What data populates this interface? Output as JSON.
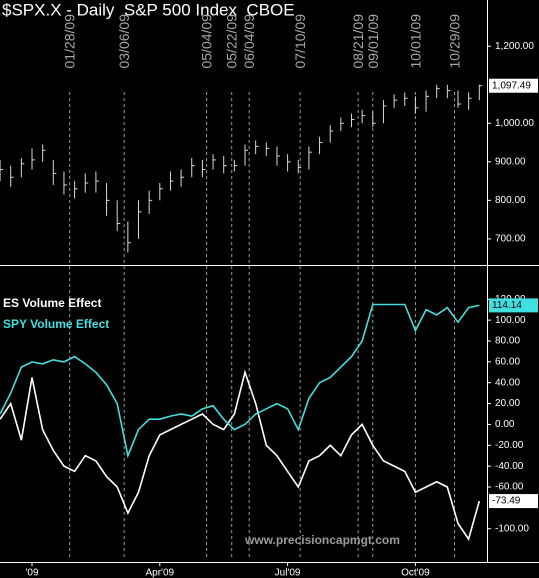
{
  "watermark": "www.precisioncapmgt.com",
  "chart_data": [
    {
      "type": "ohlc",
      "title": "$SPX.X - Daily  S&P 500 Index  CBOE",
      "color": "#d8d8d8",
      "high": [
        905,
        890,
        910,
        935,
        945,
        905,
        875,
        850,
        870,
        875,
        845,
        800,
        745,
        800,
        825,
        845,
        875,
        880,
        910,
        905,
        920,
        915,
        905,
        945,
        955,
        950,
        940,
        920,
        905,
        940,
        965,
        995,
        1015,
        1025,
        1035,
        1030,
        1060,
        1075,
        1080,
        1070,
        1085,
        1100,
        1100,
        1085,
        1080,
        1100
      ],
      "low": [
        850,
        835,
        860,
        880,
        900,
        840,
        815,
        805,
        820,
        820,
        760,
        720,
        665,
        700,
        765,
        800,
        825,
        835,
        860,
        860,
        880,
        870,
        875,
        890,
        920,
        915,
        890,
        875,
        870,
        880,
        920,
        950,
        980,
        990,
        1000,
        990,
        1000,
        1040,
        1045,
        1025,
        1030,
        1065,
        1065,
        1040,
        1035,
        1060
      ],
      "values": [
        880,
        860,
        895,
        905,
        930,
        870,
        840,
        830,
        845,
        850,
        800,
        740,
        690,
        770,
        800,
        830,
        850,
        860,
        890,
        880,
        905,
        890,
        890,
        930,
        940,
        935,
        915,
        900,
        885,
        925,
        950,
        980,
        1000,
        1010,
        1020,
        1000,
        1045,
        1060,
        1065,
        1040,
        1070,
        1090,
        1085,
        1050,
        1065,
        1097.49
      ],
      "value_labels": [
        null,
        null,
        null,
        null,
        null,
        null,
        null,
        null,
        null,
        null,
        null,
        null,
        null,
        null,
        null,
        null,
        null,
        null,
        null,
        null,
        null,
        null,
        null,
        null,
        null,
        null,
        null,
        null,
        null,
        null,
        null,
        null,
        null,
        null,
        null,
        null,
        null,
        null,
        null,
        null,
        null,
        null,
        null,
        null,
        null,
        "1,097.49"
      ],
      "ylim": [
        640,
        1320
      ],
      "yticks": [
        {
          "value": 700,
          "label": "700.00"
        },
        {
          "value": 800,
          "label": "800.00"
        },
        {
          "value": 900,
          "label": "900.00"
        },
        {
          "value": 1000,
          "label": "1,000.00"
        },
        {
          "value": 1200,
          "label": "1,200.00"
        }
      ],
      "annotations": [
        "01/28/09",
        "03/06/09",
        "05/04/09",
        "05/22/09",
        "06/04/09",
        "07/10/09",
        "08/21/09",
        "09/01/09",
        "10/01/09",
        "10/29/09"
      ]
    },
    {
      "type": "line",
      "categories": [
        null,
        null,
        null,
        "'09",
        null,
        null,
        null,
        null,
        null,
        null,
        null,
        null,
        null,
        null,
        null,
        "Apr'09",
        null,
        null,
        null,
        null,
        null,
        null,
        null,
        null,
        null,
        null,
        null,
        "Jul'09",
        null,
        null,
        null,
        null,
        null,
        null,
        null,
        null,
        null,
        null,
        null,
        "Oct'09",
        null,
        null,
        null,
        null,
        null,
        null
      ],
      "series": [
        {
          "name": "ES Volume Effect",
          "color": "#ffffff",
          "values": [
            5,
            20,
            -15,
            45,
            -5,
            -25,
            -40,
            -45,
            -30,
            -35,
            -50,
            -60,
            -85,
            -65,
            -30,
            -10,
            -5,
            0,
            5,
            10,
            0,
            -5,
            10,
            50,
            20,
            -20,
            -30,
            -45,
            -60,
            -35,
            -30,
            -20,
            -30,
            -10,
            0,
            -20,
            -35,
            -40,
            -45,
            -65,
            -60,
            -55,
            -60,
            -95,
            -110,
            -73.49
          ]
        },
        {
          "name": "SPY Volume Effect",
          "color": "#40e0e0",
          "values": [
            10,
            30,
            55,
            60,
            58,
            62,
            60,
            65,
            58,
            50,
            38,
            20,
            -30,
            -5,
            5,
            5,
            8,
            10,
            8,
            15,
            18,
            5,
            -5,
            0,
            10,
            15,
            20,
            15,
            -5,
            25,
            40,
            45,
            55,
            65,
            80,
            115,
            115,
            115,
            115,
            90,
            110,
            105,
            112,
            98,
            112,
            114.14
          ]
        }
      ],
      "ylim": [
        -130,
        150
      ],
      "yticks": [
        {
          "value": -100,
          "label": "-100.00"
        },
        {
          "value": -60,
          "label": "-60.00"
        },
        {
          "value": -40,
          "label": "-40.00"
        },
        {
          "value": -20,
          "label": "-20.00"
        },
        {
          "value": 0,
          "label": "0.00"
        },
        {
          "value": 20,
          "label": "20.00"
        },
        {
          "value": 40,
          "label": "40.00"
        },
        {
          "value": 60,
          "label": "60.00"
        },
        {
          "value": 80,
          "label": "80.00"
        },
        {
          "value": 100,
          "label": "100.00"
        },
        {
          "value": 120,
          "label": "120.00"
        }
      ]
    }
  ]
}
